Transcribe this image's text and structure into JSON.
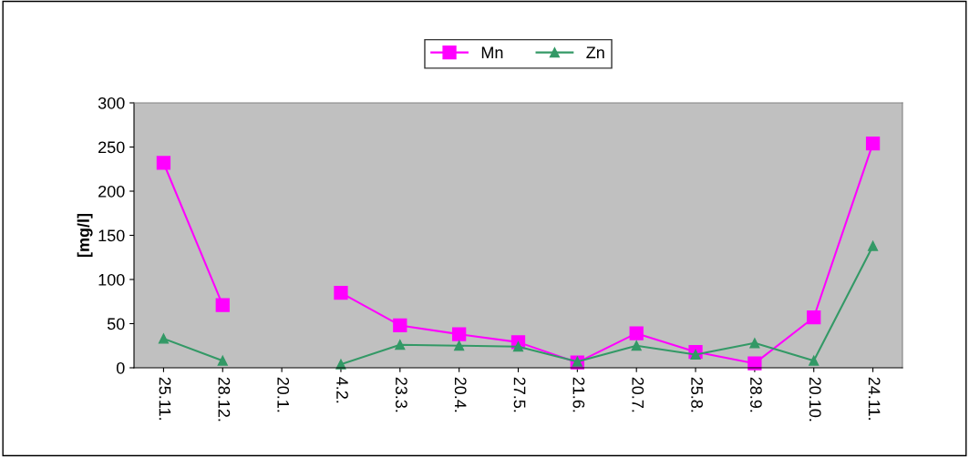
{
  "chart_data": {
    "type": "line",
    "ylabel": "[mg/l]",
    "categories": [
      "25.11.",
      "28.12.",
      "20.1.",
      "4.2.",
      "23.3.",
      "20.4.",
      "27.5.",
      "21.6.",
      "20.7.",
      "25.8.",
      "28.9.",
      "20.10.",
      "24.11."
    ],
    "series": [
      {
        "name": "Mn",
        "color": "#ff00ff",
        "marker": "square",
        "values": [
          232,
          71,
          null,
          85,
          48,
          38,
          29,
          6,
          39,
          18,
          5,
          57,
          254
        ]
      },
      {
        "name": "Zn",
        "color": "#339966",
        "marker": "triangle",
        "values": [
          33,
          8,
          null,
          4,
          26,
          25,
          24,
          7,
          25,
          15,
          28,
          8,
          138
        ]
      }
    ],
    "ylim": [
      0,
      300
    ],
    "yticks": [
      0,
      50,
      100,
      150,
      200,
      250,
      300
    ],
    "grid": false,
    "legend": "top",
    "line_style": "solid"
  }
}
